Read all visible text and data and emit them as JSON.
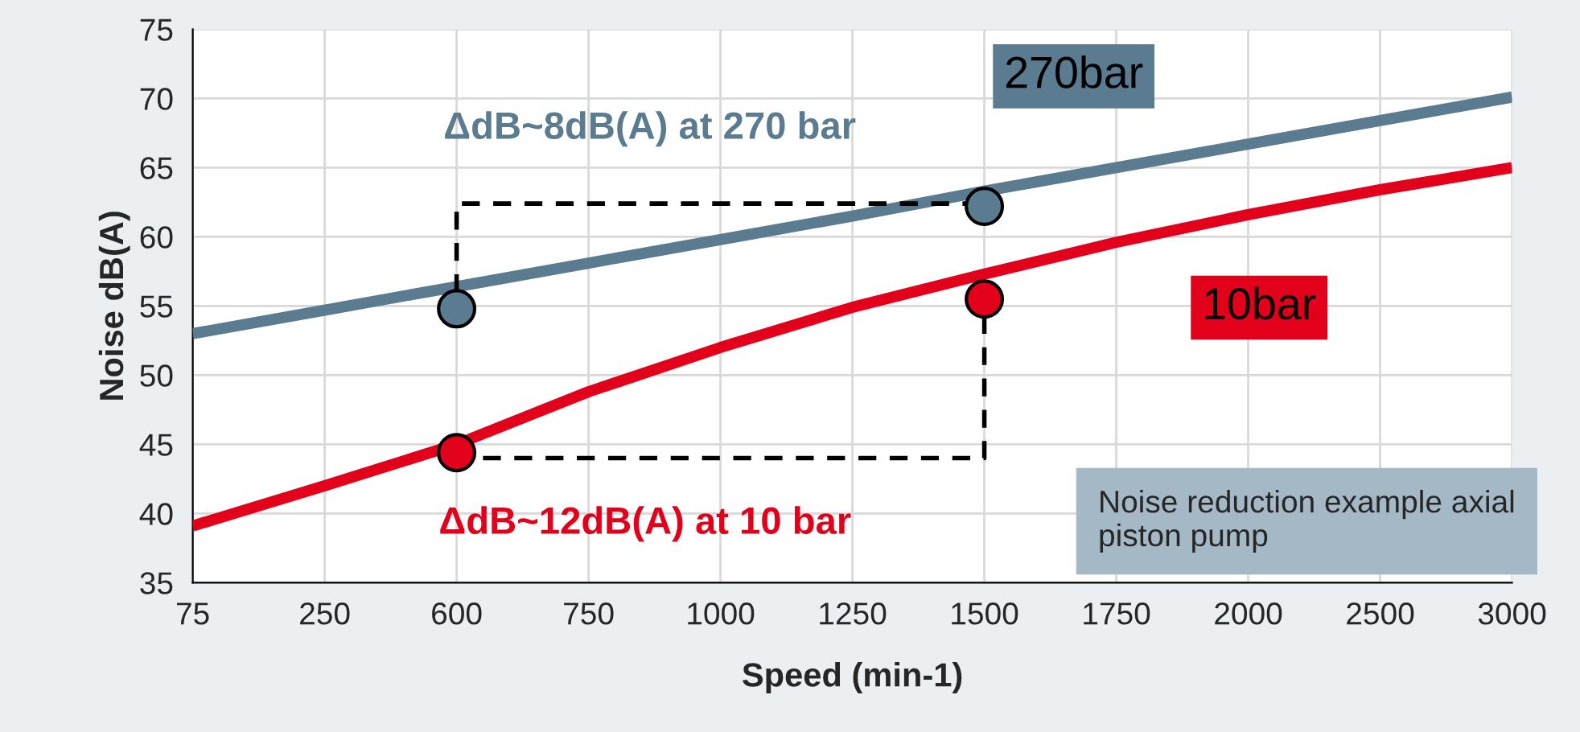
{
  "chart_data": {
    "type": "line",
    "xlabel": "Speed (min-1)",
    "ylabel": "Noise dB(A)",
    "categories": [
      "75",
      "250",
      "600",
      "750",
      "1000",
      "1250",
      "1500",
      "1750",
      "2000",
      "2500",
      "3000"
    ],
    "series": [
      {
        "name": "270bar",
        "color": "#5b7b90",
        "values": [
          53.0,
          54.7,
          56.4,
          58.1,
          59.8,
          61.5,
          63.3,
          65.0,
          66.7,
          68.4,
          70.1
        ]
      },
      {
        "name": "10bar",
        "color": "#e2001a",
        "values": [
          39.1,
          42.0,
          45.0,
          48.8,
          52.0,
          54.9,
          57.3,
          59.6,
          61.6,
          63.4,
          65.0
        ]
      },
      {
        "type": "scatter",
        "marker": "circle",
        "color": "#5b7b90",
        "values": [
          null,
          null,
          54.8,
          null,
          null,
          null,
          62.2,
          null,
          null,
          null,
          null
        ]
      },
      {
        "type": "scatter",
        "marker": "circle",
        "color": "#e2001a",
        "values": [
          null,
          null,
          44.4,
          null,
          null,
          null,
          55.5,
          null,
          null,
          null,
          null
        ]
      }
    ],
    "ylim": [
      35,
      75
    ],
    "yticks": [
      35,
      40,
      45,
      50,
      55,
      60,
      65,
      70,
      75
    ],
    "grid": true,
    "legend": false,
    "annotations": [
      "ΔdB~8dB(A) at 270 bar",
      {
        "text": "ΔdB~12dB(A) at 10 bar",
        "x": "600",
        "y": 44.4
      },
      "Noise reduction example axial piston pump"
    ]
  }
}
